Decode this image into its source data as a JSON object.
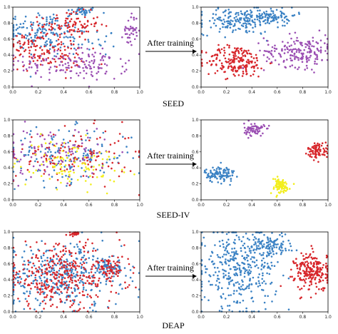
{
  "colors": {
    "blue": "#3b82c4",
    "red": "#d7262b",
    "purple": "#9b4fb3",
    "yellow": "#f2ee1c",
    "axis": "#000000"
  },
  "arrow_label": "After training",
  "rows": [
    {
      "dataset": "SEED",
      "before": {
        "type": "scatter",
        "xlim": [
          0,
          1
        ],
        "ylim": [
          0,
          1
        ],
        "x_ticks": [
          "0.0",
          "0.2",
          "0.4",
          "0.6",
          "0.8",
          "1.0"
        ],
        "y_ticks": [
          "0.0",
          "0.2",
          "0.4",
          "0.6",
          "0.8",
          "1.0"
        ],
        "clusters": [
          {
            "color": "blue",
            "cx": 0.55,
            "cy": 0.95,
            "sx": 0.06,
            "sy": 0.03,
            "n": 40
          },
          {
            "color": "blue",
            "cx": 0.22,
            "cy": 0.72,
            "sx": 0.15,
            "sy": 0.12,
            "n": 120
          },
          {
            "color": "blue",
            "cx": 0.45,
            "cy": 0.55,
            "sx": 0.2,
            "sy": 0.1,
            "n": 60
          },
          {
            "color": "red",
            "cx": 0.45,
            "cy": 0.78,
            "sx": 0.12,
            "sy": 0.08,
            "n": 100
          },
          {
            "color": "red",
            "cx": 0.28,
            "cy": 0.4,
            "sx": 0.15,
            "sy": 0.1,
            "n": 100
          },
          {
            "color": "red",
            "cx": 0.12,
            "cy": 0.55,
            "sx": 0.07,
            "sy": 0.06,
            "n": 40
          },
          {
            "color": "purple",
            "cx": 0.6,
            "cy": 0.28,
            "sx": 0.15,
            "sy": 0.1,
            "n": 110
          },
          {
            "color": "purple",
            "cx": 0.93,
            "cy": 0.72,
            "sx": 0.03,
            "sy": 0.1,
            "n": 40
          },
          {
            "color": "purple",
            "cx": 0.2,
            "cy": 0.28,
            "sx": 0.1,
            "sy": 0.07,
            "n": 40
          }
        ]
      },
      "after": {
        "type": "scatter",
        "xlim": [
          0,
          1
        ],
        "ylim": [
          0,
          1
        ],
        "x_ticks": [
          "0.0",
          "0.2",
          "0.4",
          "0.6",
          "0.8",
          "1.0"
        ],
        "y_ticks": [
          "0.0",
          "0.2",
          "0.4",
          "0.6",
          "0.8",
          "1.0"
        ],
        "clusters": [
          {
            "color": "blue",
            "cx": 0.3,
            "cy": 0.82,
            "sx": 0.16,
            "sy": 0.08,
            "n": 180
          },
          {
            "color": "blue",
            "cx": 0.55,
            "cy": 0.9,
            "sx": 0.1,
            "sy": 0.05,
            "n": 80
          },
          {
            "color": "red",
            "cx": 0.28,
            "cy": 0.32,
            "sx": 0.12,
            "sy": 0.1,
            "n": 200
          },
          {
            "color": "purple",
            "cx": 0.78,
            "cy": 0.45,
            "sx": 0.14,
            "sy": 0.1,
            "n": 190
          }
        ]
      }
    },
    {
      "dataset": "SEED-IV",
      "before": {
        "type": "scatter",
        "xlim": [
          0,
          1
        ],
        "ylim": [
          0,
          1
        ],
        "x_ticks": [
          "0.0",
          "0.2",
          "0.4",
          "0.6",
          "0.8",
          "1.0"
        ],
        "y_ticks": [
          "0.0",
          "0.2",
          "0.4",
          "0.6",
          "0.8",
          "1.0"
        ],
        "clusters": [
          {
            "color": "blue",
            "cx": 0.45,
            "cy": 0.55,
            "sx": 0.25,
            "sy": 0.17,
            "n": 140
          },
          {
            "color": "red",
            "cx": 0.5,
            "cy": 0.55,
            "sx": 0.24,
            "sy": 0.17,
            "n": 130
          },
          {
            "color": "purple",
            "cx": 0.3,
            "cy": 0.6,
            "sx": 0.22,
            "sy": 0.16,
            "n": 110
          },
          {
            "color": "yellow",
            "cx": 0.45,
            "cy": 0.45,
            "sx": 0.2,
            "sy": 0.15,
            "n": 100
          }
        ]
      },
      "after": {
        "type": "scatter",
        "xlim": [
          0,
          1
        ],
        "ylim": [
          0,
          1
        ],
        "x_ticks": [
          "0.0",
          "0.2",
          "0.4",
          "0.6",
          "0.8",
          "1.0"
        ],
        "y_ticks": [
          "0.0",
          "0.2",
          "0.4",
          "0.6",
          "0.8",
          "1.0"
        ],
        "clusters": [
          {
            "color": "blue",
            "cx": 0.15,
            "cy": 0.32,
            "sx": 0.06,
            "sy": 0.05,
            "n": 110
          },
          {
            "color": "purple",
            "cx": 0.42,
            "cy": 0.88,
            "sx": 0.04,
            "sy": 0.04,
            "n": 70
          },
          {
            "color": "red",
            "cx": 0.92,
            "cy": 0.62,
            "sx": 0.04,
            "sy": 0.05,
            "n": 80
          },
          {
            "color": "yellow",
            "cx": 0.62,
            "cy": 0.17,
            "sx": 0.04,
            "sy": 0.05,
            "n": 90
          }
        ]
      }
    },
    {
      "dataset": "DEAP",
      "before": {
        "type": "scatter",
        "xlim": [
          0,
          1
        ],
        "ylim": [
          0,
          1
        ],
        "x_ticks": [
          "0.0",
          "0.2",
          "0.4",
          "0.6",
          "0.8",
          "1.0"
        ],
        "y_ticks": [
          "0.0",
          "0.2",
          "0.4",
          "0.6",
          "0.8",
          "1.0"
        ],
        "clusters": [
          {
            "color": "blue",
            "cx": 0.38,
            "cy": 0.45,
            "sx": 0.24,
            "sy": 0.2,
            "n": 380
          },
          {
            "color": "red",
            "cx": 0.38,
            "cy": 0.45,
            "sx": 0.24,
            "sy": 0.2,
            "n": 360
          },
          {
            "color": "blue",
            "cx": 0.75,
            "cy": 0.55,
            "sx": 0.06,
            "sy": 0.06,
            "n": 70
          },
          {
            "color": "red",
            "cx": 0.76,
            "cy": 0.52,
            "sx": 0.06,
            "sy": 0.06,
            "n": 60
          },
          {
            "color": "red",
            "cx": 0.49,
            "cy": 0.98,
            "sx": 0.015,
            "sy": 0.015,
            "n": 25
          }
        ]
      },
      "after": {
        "type": "scatter",
        "xlim": [
          0,
          1
        ],
        "ylim": [
          0,
          1
        ],
        "x_ticks": [
          "0.0",
          "0.2",
          "0.4",
          "0.6",
          "0.8",
          "1.0"
        ],
        "y_ticks": [
          "0.0",
          "0.2",
          "0.4",
          "0.6",
          "0.8",
          "1.0"
        ],
        "clusters": [
          {
            "color": "blue",
            "cx": 0.3,
            "cy": 0.55,
            "sx": 0.15,
            "sy": 0.25,
            "n": 380
          },
          {
            "color": "blue",
            "cx": 0.55,
            "cy": 0.85,
            "sx": 0.08,
            "sy": 0.07,
            "n": 90
          },
          {
            "color": "red",
            "cx": 0.88,
            "cy": 0.5,
            "sx": 0.07,
            "sy": 0.12,
            "n": 230
          }
        ]
      }
    }
  ]
}
